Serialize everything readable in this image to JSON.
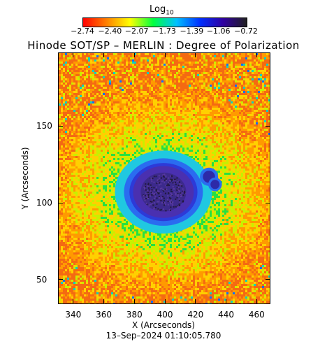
{
  "colorbar": {
    "title_base": "Log",
    "title_sub": "10",
    "ticks": [
      "−2.74",
      "−2.40",
      "−2.07",
      "−1.73",
      "−1.39",
      "−1.06",
      "−0.72"
    ],
    "tick_values": [
      -2.74,
      -2.4,
      -2.07,
      -1.73,
      -1.39,
      -1.06,
      -0.72
    ],
    "range": [
      -2.74,
      -0.72
    ],
    "colors": [
      "#ff0000",
      "#ff8000",
      "#ffff00",
      "#00ff40",
      "#00c0ff",
      "#0030ff",
      "#3000a0",
      "#202020"
    ]
  },
  "title": "Hinode SOT/SP – MERLIN : Degree of Polarization",
  "x_axis": {
    "label": "X (Arcseconds)",
    "ticks": [
      340,
      360,
      380,
      400,
      420,
      440,
      460
    ],
    "range": [
      330,
      469
    ]
  },
  "y_axis": {
    "label": "Y (Arcseconds)",
    "ticks": [
      50,
      100,
      150
    ],
    "range": [
      34,
      198
    ]
  },
  "timestamp": "13–Sep–2024 01:10:05.780",
  "map": {
    "features": [
      {
        "type": "sunspot",
        "x": 399,
        "y": 107,
        "rx": 20,
        "ry": 17
      },
      {
        "type": "pore",
        "x": 429,
        "y": 117,
        "rx": 4,
        "ry": 4
      },
      {
        "type": "pore",
        "x": 433,
        "y": 112,
        "rx": 3,
        "ry": 3
      }
    ]
  }
}
